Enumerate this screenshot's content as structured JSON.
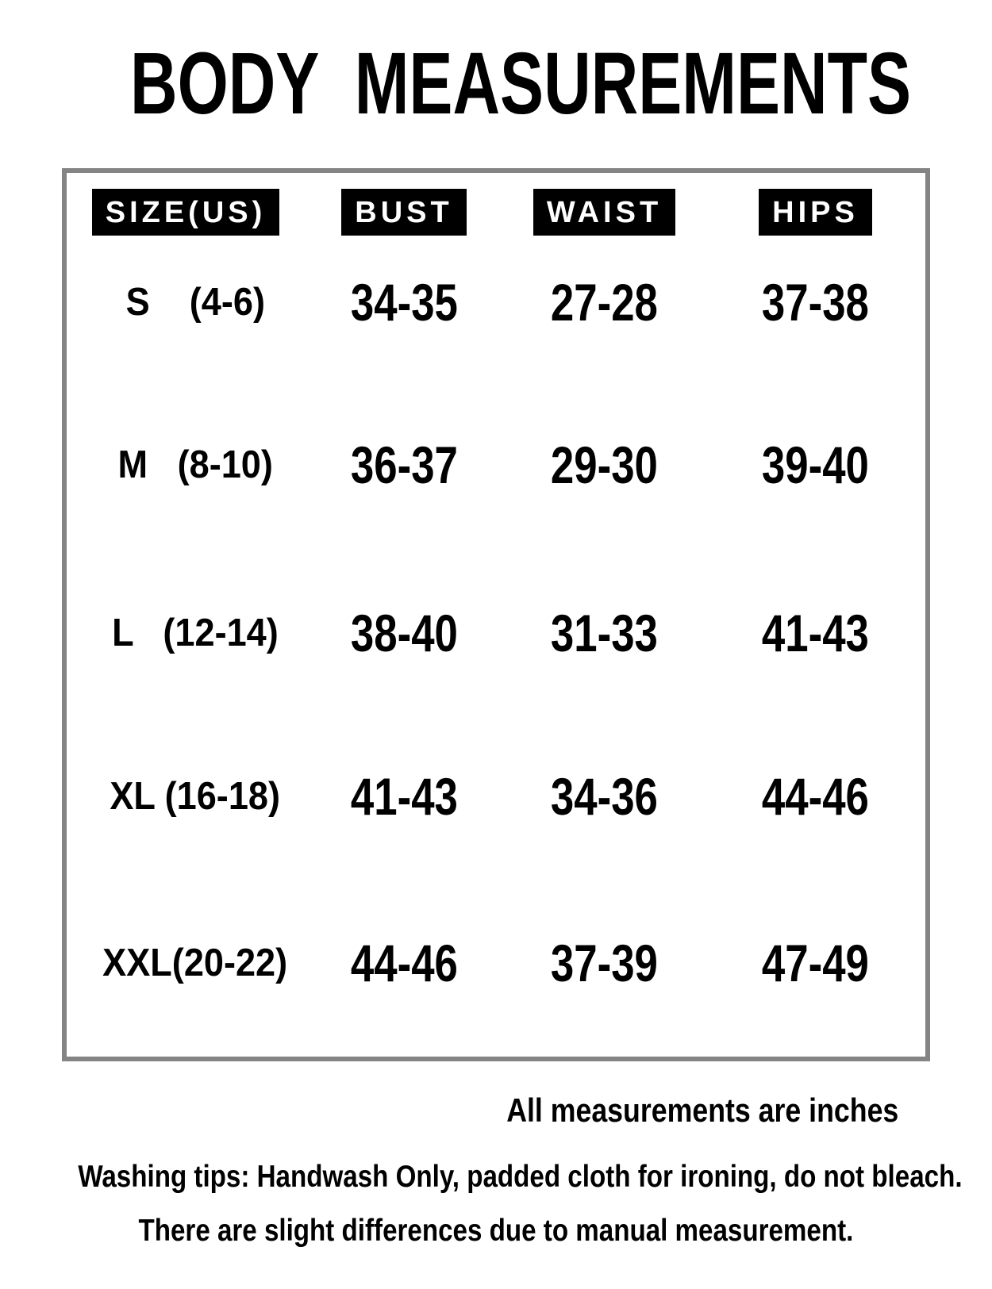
{
  "title": "BODY  MEASUREMENTS",
  "table": {
    "headers": [
      "SIZE(US)",
      "BUST",
      "WAIST",
      "HIPS"
    ],
    "rows": [
      {
        "size": "S    (4-6)",
        "bust": "34-35",
        "waist": "27-28",
        "hips": "37-38"
      },
      {
        "size": "M   (8-10)",
        "bust": "36-37",
        "waist": "29-30",
        "hips": "39-40"
      },
      {
        "size": "L   (12-14)",
        "bust": "38-40",
        "waist": "31-33",
        "hips": "41-43"
      },
      {
        "size": "XL (16-18)",
        "bust": "41-43",
        "waist": "34-36",
        "hips": "44-46"
      },
      {
        "size": "XXL(20-22)",
        "bust": "44-46",
        "waist": "37-39",
        "hips": "47-49"
      }
    ]
  },
  "notes": {
    "units": "All measurements are inches",
    "washing": "Washing tips: Handwash Only, padded cloth for ironing, do not bleach.",
    "tolerance": "There are slight differences due to manual measurement."
  },
  "colors": {
    "background": "#ffffff",
    "text": "#000000",
    "table_border": "#848484",
    "header_bg": "#000000",
    "header_fg": "#ffffff"
  }
}
